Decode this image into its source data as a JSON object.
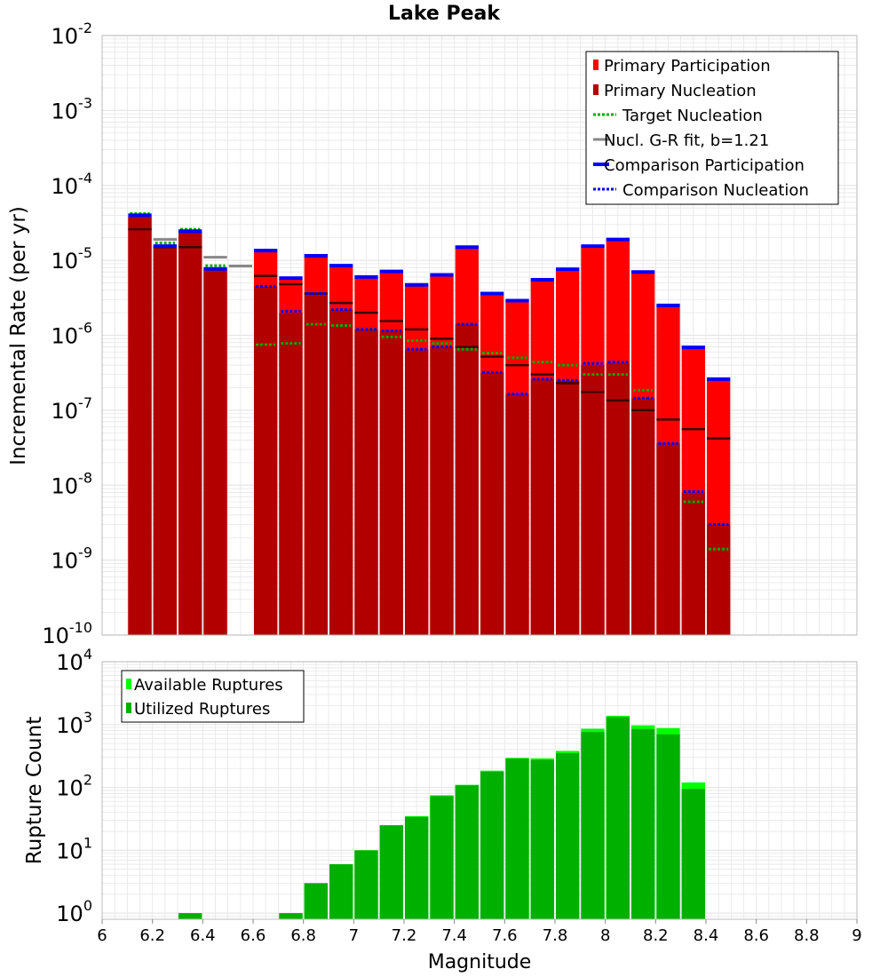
{
  "colors": {
    "primary_participation": "#ff0000",
    "primary_nucleation": "#b20000",
    "target_nucleation": "#00aa00",
    "gr_fit": "#888888",
    "comparison": "#0000ff",
    "nucl_tick": "#400000",
    "available": "#00ff00",
    "utilized": "#00b000",
    "grid": "#e6e6e6",
    "frame": "#bbbbbb"
  },
  "chart_data": [
    {
      "type": "bar",
      "title": "Lake Peak",
      "xlabel": "",
      "ylabel": "Incremental Rate (per yr)",
      "y_scale": "log",
      "ylim": [
        1e-10,
        0.01
      ],
      "xlim": [
        6.0,
        9.0
      ],
      "y_tick_labels": [
        {
          "base": "10",
          "exp": "-10"
        },
        {
          "base": "10",
          "exp": "-9"
        },
        {
          "base": "10",
          "exp": "-8"
        },
        {
          "base": "10",
          "exp": "-7"
        },
        {
          "base": "10",
          "exp": "-6"
        },
        {
          "base": "10",
          "exp": "-5"
        },
        {
          "base": "10",
          "exp": "-4"
        },
        {
          "base": "10",
          "exp": "-3"
        },
        {
          "base": "10",
          "exp": "-2"
        }
      ],
      "legend_position": "top-right",
      "legend": [
        {
          "key": "pp",
          "label": "Primary Participation"
        },
        {
          "key": "pn",
          "label": "Primary Nucleation"
        },
        {
          "key": "tn",
          "label": "Target Nucleation"
        },
        {
          "key": "gr",
          "label": "Nucl. G-R fit, b=1.21"
        },
        {
          "key": "cp",
          "label": "Comparison Participation"
        },
        {
          "key": "cn",
          "label": "Comparison Nucleation"
        }
      ],
      "grid": true,
      "bins": [
        {
          "x": 6.15,
          "pp": 3.8e-05,
          "pn": 3.8e-05,
          "cp": 4e-05,
          "cn": 4e-05,
          "tn": 4.2e-05,
          "gr": 2.6e-05,
          "nt": 2.6e-05
        },
        {
          "x": 6.25,
          "pp": 1.5e-05,
          "pn": 1.5e-05,
          "cp": 1.55e-05,
          "cn": 1.55e-05,
          "tn": 1.7e-05,
          "gr": 1.9e-05,
          "nt": 1.5e-05
        },
        {
          "x": 6.35,
          "pp": 2.4e-05,
          "pn": 2.4e-05,
          "cp": 2.45e-05,
          "cn": 2.45e-05,
          "tn": 2.6e-05,
          "gr": 1.5e-05,
          "nt": 1.5e-05
        },
        {
          "x": 6.45,
          "pp": 7.5e-06,
          "pn": 7.5e-06,
          "cp": 7.7e-06,
          "cn": 7.7e-06,
          "tn": 8.5e-06,
          "gr": 1.1e-05,
          "nt": null
        },
        {
          "x": 6.55,
          "pp": null,
          "pn": null,
          "cp": null,
          "cn": null,
          "tn": null,
          "gr": 8.4e-06,
          "nt": null
        },
        {
          "x": 6.65,
          "pp": 1.3e-05,
          "pn": 4.5e-06,
          "cp": 1.35e-05,
          "cn": 4.5e-06,
          "tn": 7.5e-07,
          "gr": 6.2e-06,
          "nt": 6.2e-06
        },
        {
          "x": 6.75,
          "pp": 5.6e-06,
          "pn": 2e-06,
          "cp": 5.8e-06,
          "cn": 2.1e-06,
          "tn": 7.8e-07,
          "gr": 4.8e-06,
          "nt": 4.8e-06
        },
        {
          "x": 6.85,
          "pp": 1.1e-05,
          "pn": 3.5e-06,
          "cp": 1.15e-05,
          "cn": 3.6e-06,
          "tn": 1.4e-06,
          "gr": 3.6e-06,
          "nt": 3.6e-06
        },
        {
          "x": 6.95,
          "pp": 8.3e-06,
          "pn": 2.2e-06,
          "cp": 8.5e-06,
          "cn": 2.2e-06,
          "tn": 1.35e-06,
          "gr": 2.7e-06,
          "nt": 2.7e-06
        },
        {
          "x": 7.05,
          "pp": 5.8e-06,
          "pn": 1.2e-06,
          "cp": 6e-06,
          "cn": 1.2e-06,
          "tn": 1.2e-06,
          "gr": 2e-06,
          "nt": 2e-06
        },
        {
          "x": 7.15,
          "pp": 6.9e-06,
          "pn": 1.15e-06,
          "cp": 7.1e-06,
          "cn": 1.15e-06,
          "tn": 9.5e-07,
          "gr": 1.55e-06,
          "nt": 1.55e-06
        },
        {
          "x": 7.25,
          "pp": 4.6e-06,
          "pn": 6.5e-07,
          "cp": 4.7e-06,
          "cn": 6.5e-07,
          "tn": 8.5e-07,
          "gr": 1.2e-06,
          "nt": 1.2e-06
        },
        {
          "x": 7.35,
          "pp": 6.2e-06,
          "pn": 7e-07,
          "cp": 6.4e-06,
          "cn": 7e-07,
          "tn": 7.8e-07,
          "gr": 9e-07,
          "nt": 9e-07
        },
        {
          "x": 7.45,
          "pp": 1.45e-05,
          "pn": 1.4e-06,
          "cp": 1.5e-05,
          "cn": 1.4e-06,
          "tn": 6.5e-07,
          "gr": 7e-07,
          "nt": 7e-07
        },
        {
          "x": 7.55,
          "pp": 3.5e-06,
          "pn": 3.2e-07,
          "cp": 3.6e-06,
          "cn": 3.2e-07,
          "tn": 5.8e-07,
          "gr": 5.2e-07,
          "nt": 5.2e-07
        },
        {
          "x": 7.65,
          "pp": 2.8e-06,
          "pn": 1.65e-07,
          "cp": 2.9e-06,
          "cn": 1.65e-07,
          "tn": 5e-07,
          "gr": 4e-07,
          "nt": 4e-07
        },
        {
          "x": 7.75,
          "pp": 5.3e-06,
          "pn": 2.6e-07,
          "cp": 5.5e-06,
          "cn": 2.6e-07,
          "tn": 4.4e-07,
          "gr": 3e-07,
          "nt": 3e-07
        },
        {
          "x": 7.85,
          "pp": 7.3e-06,
          "pn": 2.5e-07,
          "cp": 7.6e-06,
          "cn": 2.5e-07,
          "tn": 4e-07,
          "gr": 2.3e-07,
          "nt": 2.3e-07
        },
        {
          "x": 7.95,
          "pp": 1.5e-05,
          "pn": 4e-07,
          "cp": 1.55e-05,
          "cn": 4.2e-07,
          "tn": 3e-07,
          "gr": 1.75e-07,
          "nt": 1.75e-07
        },
        {
          "x": 8.05,
          "pp": 1.85e-05,
          "pn": 4.3e-07,
          "cp": 1.9e-05,
          "cn": 4.4e-07,
          "tn": 3e-07,
          "gr": 1.35e-07,
          "nt": 1.35e-07
        },
        {
          "x": 8.15,
          "pp": 6.8e-06,
          "pn": 1.45e-07,
          "cp": 7e-06,
          "cn": 1.45e-07,
          "tn": 1.85e-07,
          "gr": 1e-07,
          "nt": 1e-07
        },
        {
          "x": 8.25,
          "pp": 2.4e-06,
          "pn": 3.6e-08,
          "cp": 2.5e-06,
          "cn": 3.6e-08,
          "tn": null,
          "gr": 7.5e-08,
          "nt": 7.5e-08
        },
        {
          "x": 8.35,
          "pp": 6.7e-07,
          "pn": 8e-09,
          "cp": 6.9e-07,
          "cn": 8.2e-09,
          "tn": 6e-09,
          "gr": 5.6e-08,
          "nt": 5.6e-08
        },
        {
          "x": 8.45,
          "pp": 2.5e-07,
          "pn": 3e-09,
          "cp": 2.6e-07,
          "cn": 3e-09,
          "tn": 1.4e-09,
          "gr": 4.2e-08,
          "nt": 4.2e-08
        }
      ]
    },
    {
      "type": "bar",
      "title": "",
      "xlabel": "Magnitude",
      "ylabel": "Rupture Count",
      "y_scale": "log",
      "ylim": [
        0.8,
        10000
      ],
      "xlim": [
        6.0,
        9.0
      ],
      "x_tick_labels": [
        "6",
        "6.2",
        "6.4",
        "6.6",
        "6.8",
        "7",
        "7.2",
        "7.4",
        "7.6",
        "7.8",
        "8",
        "8.2",
        "8.4",
        "8.6",
        "8.8",
        "9"
      ],
      "x_ticks": [
        6.0,
        6.2,
        6.4,
        6.6,
        6.8,
        7.0,
        7.2,
        7.4,
        7.6,
        7.8,
        8.0,
        8.2,
        8.4,
        8.6,
        8.8,
        9.0
      ],
      "y_tick_labels": [
        {
          "base": "10",
          "exp": "0"
        },
        {
          "base": "10",
          "exp": "1"
        },
        {
          "base": "10",
          "exp": "2"
        },
        {
          "base": "10",
          "exp": "3"
        },
        {
          "base": "10",
          "exp": "4"
        }
      ],
      "legend_position": "top-left",
      "legend": [
        {
          "key": "available",
          "label": "Available Ruptures"
        },
        {
          "key": "utilized",
          "label": "Utilized Ruptures"
        }
      ],
      "grid": true,
      "bins": [
        {
          "x": 6.35,
          "available": 1,
          "utilized": 1
        },
        {
          "x": 6.75,
          "available": 1,
          "utilized": 1
        },
        {
          "x": 6.85,
          "available": 3,
          "utilized": 3
        },
        {
          "x": 6.95,
          "available": 6,
          "utilized": 6
        },
        {
          "x": 7.05,
          "available": 10,
          "utilized": 10
        },
        {
          "x": 7.15,
          "available": 25,
          "utilized": 25
        },
        {
          "x": 7.25,
          "available": 35,
          "utilized": 34
        },
        {
          "x": 7.35,
          "available": 75,
          "utilized": 73
        },
        {
          "x": 7.45,
          "available": 110,
          "utilized": 108
        },
        {
          "x": 7.55,
          "available": 185,
          "utilized": 178
        },
        {
          "x": 7.65,
          "available": 295,
          "utilized": 288
        },
        {
          "x": 7.75,
          "available": 290,
          "utilized": 275
        },
        {
          "x": 7.85,
          "available": 380,
          "utilized": 350
        },
        {
          "x": 7.95,
          "available": 860,
          "utilized": 760
        },
        {
          "x": 8.05,
          "available": 1380,
          "utilized": 1320
        },
        {
          "x": 8.15,
          "available": 970,
          "utilized": 850
        },
        {
          "x": 8.25,
          "available": 880,
          "utilized": 700
        },
        {
          "x": 8.35,
          "available": 120,
          "utilized": 95
        }
      ]
    }
  ]
}
